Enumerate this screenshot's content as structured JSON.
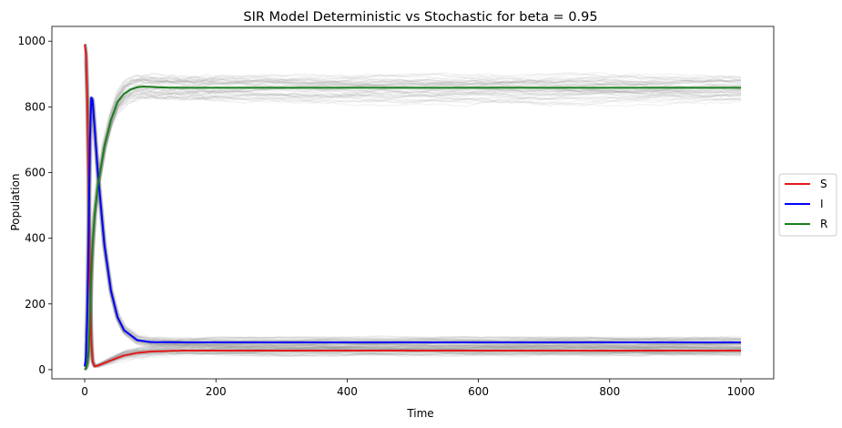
{
  "chart_data": {
    "type": "line",
    "title": "SIR Model Deterministic vs Stochastic for beta = 0.95",
    "xlabel": "Time",
    "ylabel": "Population",
    "xlim": [
      -50,
      1050
    ],
    "ylim": [
      -28,
      1045
    ],
    "xticks": [
      0,
      200,
      400,
      600,
      800,
      1000
    ],
    "yticks": [
      0,
      200,
      400,
      600,
      800,
      1000
    ],
    "grid": false,
    "legend_position": "outside-right",
    "legend": [
      {
        "name": "S",
        "color": "#e41a1c"
      },
      {
        "name": "I",
        "color": "#0000ff"
      },
      {
        "name": "R",
        "color": "#1a7f1a"
      }
    ],
    "series": [
      {
        "name": "S",
        "color": "#e41a1c",
        "x": [
          0,
          2,
          4,
          6,
          8,
          10,
          12,
          15,
          20,
          30,
          40,
          50,
          60,
          80,
          100,
          150,
          200,
          300,
          500,
          1000
        ],
        "y": [
          990,
          960,
          820,
          560,
          280,
          90,
          25,
          10,
          12,
          20,
          28,
          36,
          43,
          51,
          55,
          58,
          58,
          58,
          58,
          58
        ]
      },
      {
        "name": "I",
        "color": "#0000ff",
        "x": [
          0,
          2,
          4,
          6,
          8,
          10,
          12,
          15,
          20,
          30,
          40,
          50,
          60,
          80,
          100,
          150,
          200,
          300,
          500,
          1000
        ],
        "y": [
          10,
          40,
          170,
          420,
          700,
          830,
          820,
          740,
          600,
          380,
          240,
          160,
          120,
          90,
          84,
          83,
          83,
          83,
          83,
          83
        ]
      },
      {
        "name": "R",
        "color": "#1a7f1a",
        "x": [
          0,
          2,
          4,
          6,
          8,
          10,
          12,
          15,
          20,
          30,
          40,
          50,
          60,
          70,
          80,
          90,
          100,
          120,
          150,
          200,
          300,
          500,
          1000
        ],
        "y": [
          0,
          5,
          20,
          60,
          150,
          290,
          380,
          470,
          560,
          680,
          760,
          815,
          840,
          853,
          860,
          862,
          861,
          859,
          858,
          858,
          858,
          858,
          858
        ]
      }
    ],
    "stochastic_band": {
      "color": "#888888",
      "runs": 50,
      "spread_R": 60,
      "spread_low": 20
    }
  }
}
